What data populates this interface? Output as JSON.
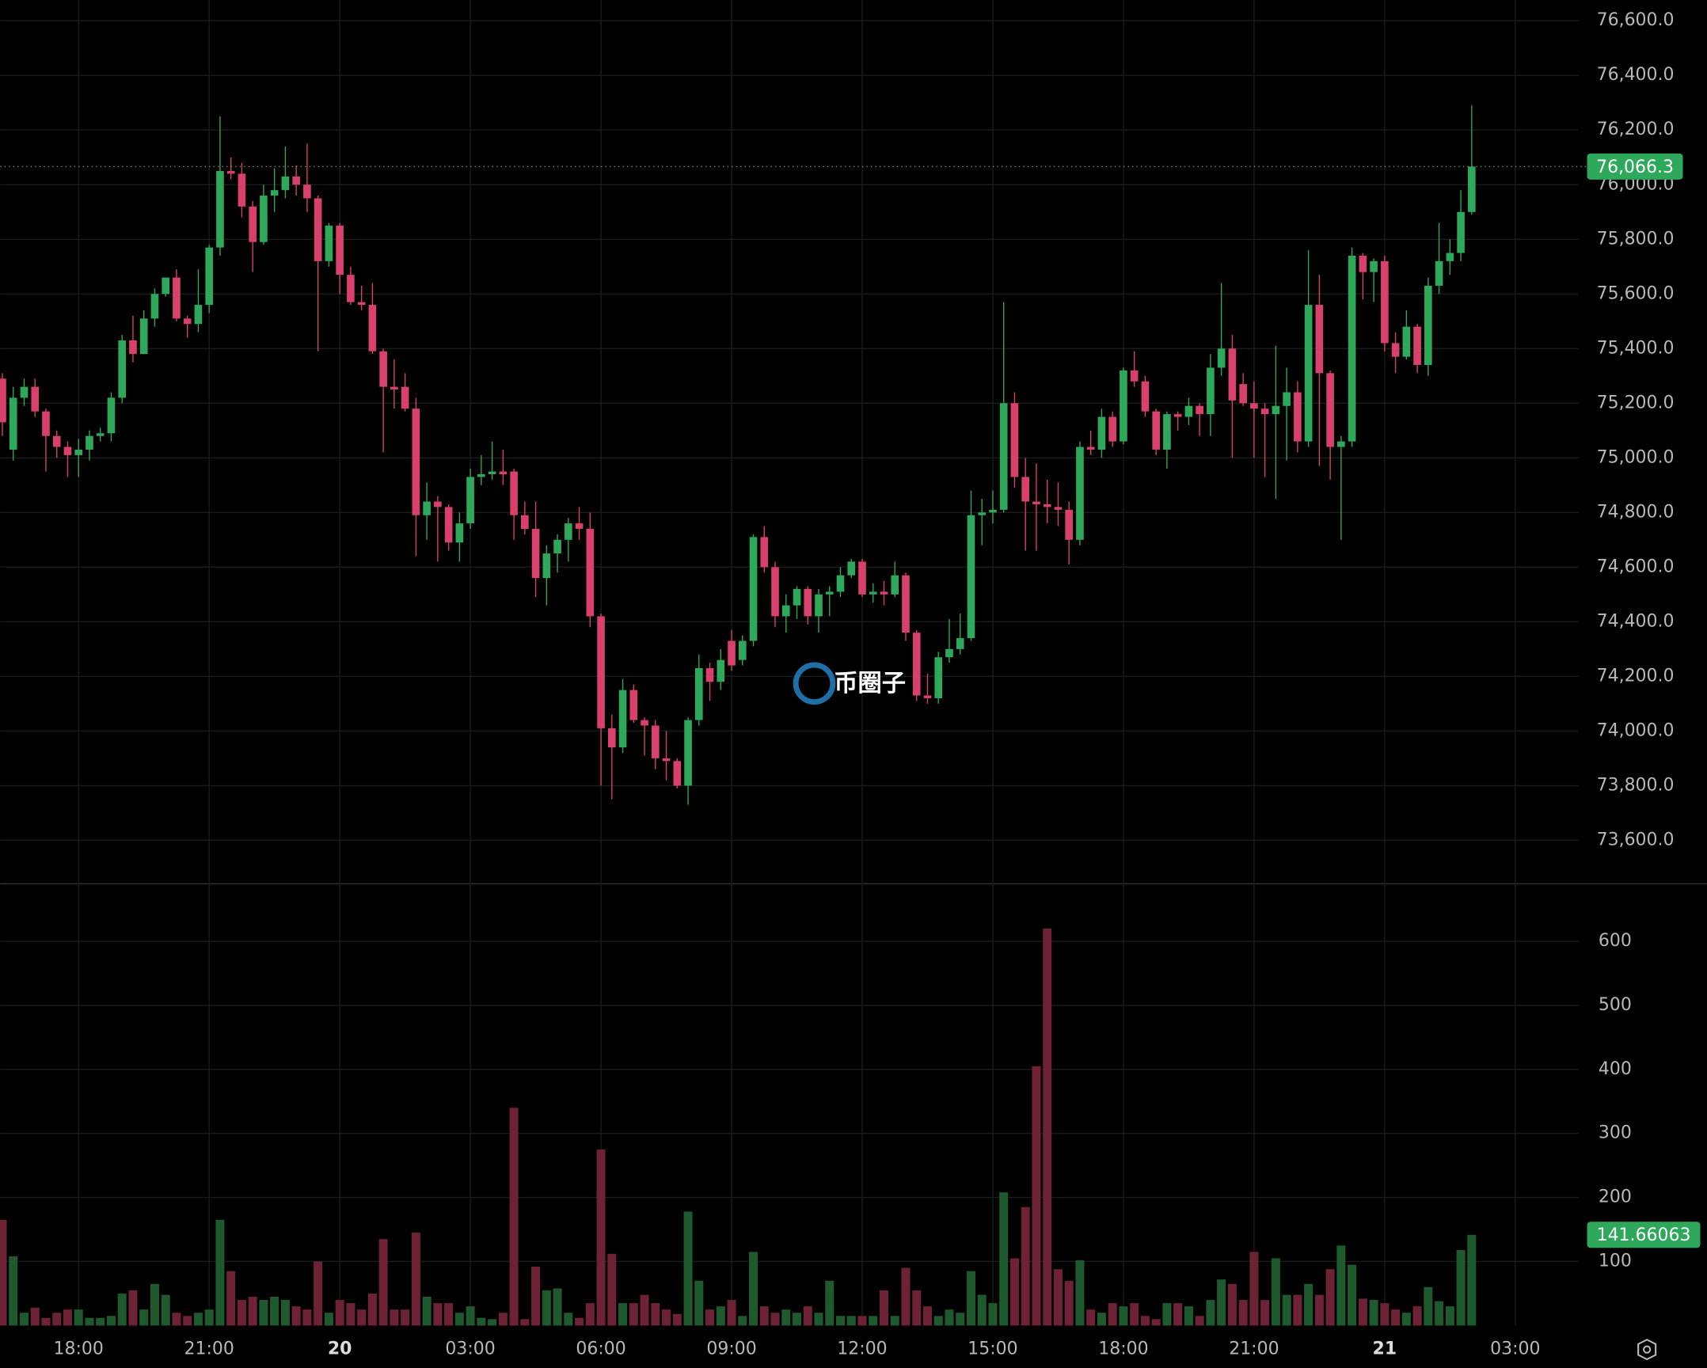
{
  "chart_data": {
    "type": "candlestick",
    "up_color": "#2ea85a",
    "down_color": "#d8416b",
    "volume_up_color": "#1e5a2e",
    "volume_down_color": "#6e2236",
    "grid": true,
    "xlim": [
      -0.2,
      144.8
    ],
    "xticks": [
      {
        "value": 7,
        "label": "18:00"
      },
      {
        "value": 19,
        "label": "21:00"
      },
      {
        "value": 31,
        "label": "20"
      },
      {
        "value": 43,
        "label": "03:00"
      },
      {
        "value": 55,
        "label": "06:00"
      },
      {
        "value": 67,
        "label": "09:00"
      },
      {
        "value": 79,
        "label": "12:00"
      },
      {
        "value": 91,
        "label": "15:00"
      },
      {
        "value": 103,
        "label": "18:00"
      },
      {
        "value": 115,
        "label": "21:00"
      },
      {
        "value": 127,
        "label": "21"
      },
      {
        "value": 139,
        "label": "03:00"
      }
    ],
    "ylim": [
      73441,
      76676
    ],
    "yticks": [
      {
        "value": 73600,
        "label": "73,600.0"
      },
      {
        "value": 73800,
        "label": "73,800.0"
      },
      {
        "value": 74000,
        "label": "74,000.0"
      },
      {
        "value": 74200,
        "label": "74,200.0"
      },
      {
        "value": 74400,
        "label": "74,400.0"
      },
      {
        "value": 74600,
        "label": "74,600.0"
      },
      {
        "value": 74800,
        "label": "74,800.0"
      },
      {
        "value": 75000,
        "label": "75,000.0"
      },
      {
        "value": 75200,
        "label": "75,200.0"
      },
      {
        "value": 75400,
        "label": "75,400.0"
      },
      {
        "value": 75600,
        "label": "75,600.0"
      },
      {
        "value": 75800,
        "label": "75,800.0"
      },
      {
        "value": 76000,
        "label": "76,000.0"
      },
      {
        "value": 76200,
        "label": "76,200.0"
      },
      {
        "value": 76400,
        "label": "76,400.0"
      },
      {
        "value": 76600,
        "label": "76,600.0"
      }
    ],
    "volume_ylim": [
      0,
      690
    ],
    "volume_yticks": [
      100,
      200,
      300,
      400,
      500,
      600
    ],
    "last_price": {
      "value": 76066.3,
      "label": "76,066.3"
    },
    "last_volume": 141.66063,
    "watermark": "币圈子",
    "open": [
      75290,
      75030,
      75220,
      75260,
      75170,
      75080,
      75040,
      75010,
      75030,
      75080,
      75090,
      75220,
      75430,
      75380,
      75510,
      75600,
      75660,
      75510,
      75490,
      75560,
      75770,
      76050,
      76040,
      75920,
      75790,
      75960,
      75980,
      76030,
      76000,
      75950,
      75720,
      75850,
      75670,
      75570,
      75560,
      75390,
      75260,
      75260,
      75180,
      74790,
      74840,
      74820,
      74690,
      74760,
      74930,
      74940,
      74950,
      74950,
      74790,
      74740,
      74560,
      74650,
      74700,
      74760,
      74740,
      74420,
      74010,
      73940,
      74150,
      74040,
      74020,
      73900,
      73890,
      73800,
      74040,
      74230,
      74180,
      74330,
      74260,
      74330,
      74710,
      74600,
      74420,
      74460,
      74520,
      74420,
      74500,
      74510,
      74570,
      74620,
      74500,
      74510,
      74500,
      74570,
      74360,
      74130,
      74120,
      74270,
      74300,
      74340,
      74790,
      74800,
      74810,
      75200,
      74930,
      74840,
      74830,
      74820,
      74810,
      74700,
      75040,
      75030,
      75150,
      75060,
      75320,
      75280,
      75170,
      75030,
      75160,
      75150,
      75190,
      75160,
      75330,
      75400,
      75270,
      75200,
      75180,
      75160,
      75190,
      75240,
      75060,
      75560,
      75310,
      75040,
      75060,
      75740,
      75680,
      75720,
      75420,
      75370,
      75480,
      75340,
      75630,
      75720,
      75750,
      75900
    ],
    "high": [
      75310,
      75260,
      75290,
      75290,
      75180,
      75100,
      75060,
      75070,
      75100,
      75110,
      75240,
      75450,
      75520,
      75540,
      75620,
      75660,
      75690,
      75520,
      75690,
      75780,
      76250,
      76100,
      76080,
      75940,
      76000,
      76060,
      76140,
      76070,
      76150,
      75960,
      75860,
      75860,
      75700,
      75630,
      75640,
      75400,
      75360,
      75310,
      75220,
      74910,
      74860,
      74830,
      74800,
      74960,
      75010,
      75060,
      75030,
      74960,
      74840,
      74840,
      74680,
      74720,
      74780,
      74820,
      74800,
      74430,
      74060,
      74190,
      74170,
      74050,
      74040,
      74000,
      73900,
      74050,
      74280,
      74250,
      74300,
      74370,
      74350,
      74720,
      74750,
      74620,
      74500,
      74530,
      74530,
      74520,
      74530,
      74600,
      74630,
      74630,
      74540,
      74550,
      74620,
      74580,
      74370,
      74210,
      74290,
      74410,
      74430,
      74880,
      74850,
      74880,
      75570,
      75240,
      75000,
      74980,
      74920,
      74910,
      74840,
      75060,
      75100,
      75180,
      75170,
      75330,
      75390,
      75300,
      75180,
      75170,
      75170,
      75220,
      75200,
      75380,
      75640,
      75450,
      75310,
      75280,
      75200,
      75410,
      75330,
      75280,
      75760,
      75670,
      75320,
      75080,
      75770,
      75750,
      75730,
      75740,
      75460,
      75540,
      75490,
      75660,
      75860,
      75800,
      75980,
      76290
    ],
    "low": [
      75080,
      74990,
      75190,
      75150,
      74950,
      75000,
      74930,
      74930,
      74990,
      75060,
      75060,
      75200,
      75350,
      75380,
      75480,
      75590,
      75500,
      75440,
      75460,
      75530,
      75740,
      76020,
      75880,
      75680,
      75780,
      75900,
      75950,
      75960,
      75900,
      75390,
      75700,
      75600,
      75560,
      75540,
      75380,
      75020,
      75180,
      75170,
      74640,
      74700,
      74620,
      74660,
      74620,
      74740,
      74900,
      74920,
      74900,
      74700,
      74720,
      74490,
      74460,
      74580,
      74620,
      74700,
      74380,
      73800,
      73750,
      73920,
      74030,
      73910,
      73860,
      73820,
      73790,
      73730,
      74020,
      74110,
      74150,
      74220,
      74240,
      74310,
      74580,
      74380,
      74360,
      74410,
      74390,
      74360,
      74420,
      74490,
      74560,
      74490,
      74470,
      74460,
      74490,
      74330,
      74110,
      74100,
      74100,
      74250,
      74280,
      74330,
      74680,
      74760,
      74800,
      74890,
      74660,
      74660,
      74760,
      74750,
      74610,
      74680,
      75010,
      75000,
      75040,
      75050,
      75260,
      75150,
      75010,
      74960,
      75100,
      75120,
      75080,
      75080,
      75300,
      75000,
      75190,
      75000,
      74930,
      74850,
      74990,
      75020,
      75040,
      74970,
      74920,
      74700,
      75040,
      75580,
      75570,
      75390,
      75310,
      75360,
      75310,
      75300,
      75600,
      75670,
      75720,
      75890
    ],
    "close": [
      75130,
      75220,
      75260,
      75170,
      75080,
      75040,
      75010,
      75030,
      75080,
      75090,
      75220,
      75430,
      75380,
      75510,
      75600,
      75660,
      75510,
      75490,
      75560,
      75770,
      76050,
      76040,
      75920,
      75790,
      75960,
      75980,
      76030,
      76000,
      75950,
      75720,
      75850,
      75670,
      75570,
      75560,
      75390,
      75260,
      75250,
      75180,
      74790,
      74840,
      74820,
      74690,
      74760,
      74930,
      74940,
      74950,
      74940,
      74790,
      74740,
      74560,
      74650,
      74700,
      74760,
      74740,
      74420,
      74010,
      73940,
      74150,
      74040,
      74020,
      73900,
      73890,
      73800,
      74040,
      74230,
      74180,
      74260,
      74240,
      74330,
      74710,
      74600,
      74420,
      74460,
      74520,
      74420,
      74500,
      74510,
      74570,
      74620,
      74500,
      74510,
      74500,
      74570,
      74360,
      74130,
      74120,
      74270,
      74300,
      74340,
      74790,
      74800,
      74810,
      75200,
      74930,
      74840,
      74830,
      74820,
      74810,
      74700,
      75040,
      75030,
      75150,
      75060,
      75320,
      75280,
      75170,
      75030,
      75160,
      75150,
      75190,
      75160,
      75330,
      75400,
      75210,
      75200,
      75180,
      75160,
      75190,
      75240,
      75060,
      75560,
      75310,
      75040,
      75060,
      75740,
      75680,
      75720,
      75420,
      75370,
      75480,
      75340,
      75630,
      75720,
      75750,
      75900,
      76066.3
    ],
    "volume": [
      165,
      108,
      20,
      28,
      12,
      20,
      25,
      25,
      12,
      12,
      15,
      50,
      55,
      25,
      65,
      48,
      20,
      15,
      20,
      25,
      165,
      85,
      40,
      45,
      40,
      45,
      40,
      30,
      25,
      100,
      20,
      40,
      35,
      25,
      50,
      135,
      25,
      25,
      145,
      45,
      35,
      35,
      20,
      30,
      12,
      10,
      20,
      340,
      10,
      92,
      55,
      58,
      20,
      12,
      35,
      275,
      112,
      35,
      35,
      48,
      35,
      25,
      18,
      178,
      70,
      25,
      30,
      40,
      15,
      115,
      30,
      20,
      25,
      20,
      30,
      20,
      70,
      15,
      15,
      15,
      15,
      55,
      15,
      90,
      55,
      30,
      15,
      25,
      20,
      85,
      48,
      35,
      208,
      105,
      185,
      405,
      620,
      88,
      70,
      102,
      25,
      20,
      35,
      30,
      35,
      15,
      10,
      35,
      35,
      30,
      15,
      40,
      72,
      65,
      40,
      115,
      40,
      105,
      48,
      48,
      65,
      48,
      88,
      125,
      95,
      42,
      40,
      35,
      25,
      20,
      30,
      60,
      38,
      30,
      118,
      141.66063
    ]
  }
}
